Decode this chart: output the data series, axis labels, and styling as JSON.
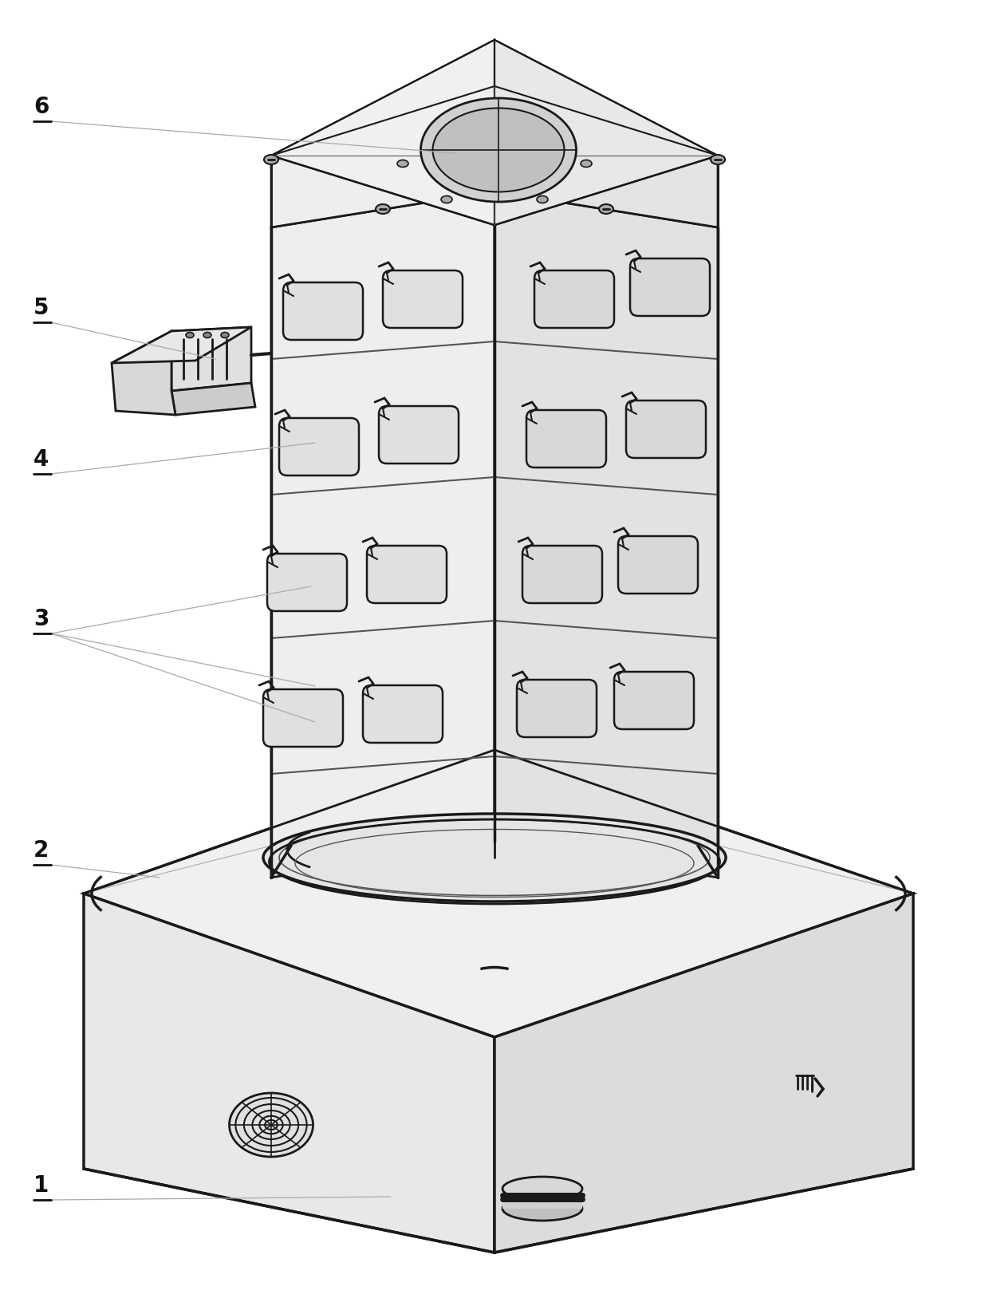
{
  "bg_color": "#ffffff",
  "line_color": "#1a1a1a",
  "med_line_color": "#555555",
  "thin_line_color": "#aaaaaa",
  "face_lt": "#f5f5f5",
  "face_left": "#eeeeee",
  "face_right": "#e2e2e2",
  "face_top": "#f8f8f8",
  "face_dark": "#d0d0d0",
  "face_base_top": "#f0f0f0",
  "face_base_left": "#e8e8e8",
  "face_base_right": "#dcdcdc",
  "slot_color": "#d8d8d8",
  "font_size": 20,
  "fig_width": 12.4,
  "fig_height": 16.32
}
